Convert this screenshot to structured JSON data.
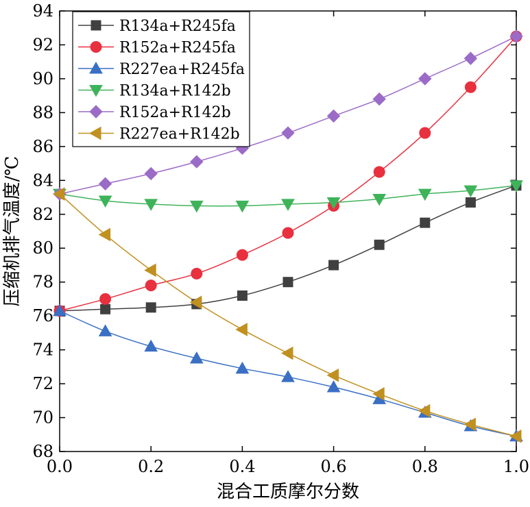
{
  "chart_data": {
    "type": "line",
    "title": "",
    "xlabel": "混合工质摩尔分数",
    "ylabel": "压缩机排气温度/℃",
    "xlim": [
      0,
      1
    ],
    "ylim": [
      68,
      94
    ],
    "xticks": [
      "0.0",
      "0.2",
      "0.4",
      "0.6",
      "0.8",
      "1.0"
    ],
    "yticks": [
      "68",
      "70",
      "72",
      "74",
      "76",
      "78",
      "80",
      "82",
      "84",
      "86",
      "88",
      "90",
      "92",
      "94"
    ],
    "grid": false,
    "legend_position": "top-left",
    "x": [
      0.0,
      0.1,
      0.2,
      0.3,
      0.4,
      0.5,
      0.6,
      0.7,
      0.8,
      0.9,
      1.0
    ],
    "series": [
      {
        "name": "R134a+R245fa",
        "color": "#404040",
        "marker": "square",
        "values": [
          76.3,
          76.4,
          76.5,
          76.7,
          77.2,
          78.0,
          79.0,
          80.2,
          81.5,
          82.7,
          83.7
        ]
      },
      {
        "name": "R152a+R245fa",
        "color": "#e8303f",
        "marker": "circle",
        "values": [
          76.3,
          77.0,
          77.8,
          78.5,
          79.6,
          80.9,
          82.5,
          84.5,
          86.8,
          89.5,
          92.5
        ]
      },
      {
        "name": "R227ea+R245fa",
        "color": "#3a6fc4",
        "marker": "triangle-up",
        "values": [
          76.3,
          75.1,
          74.2,
          73.5,
          72.9,
          72.4,
          71.8,
          71.1,
          70.3,
          69.5,
          68.9
        ]
      },
      {
        "name": "R134a+R142b",
        "color": "#3fb35a",
        "marker": "triangle-down",
        "values": [
          83.2,
          82.8,
          82.6,
          82.5,
          82.5,
          82.6,
          82.7,
          82.9,
          83.2,
          83.4,
          83.7
        ]
      },
      {
        "name": "R152a+R142b",
        "color": "#9b6bc8",
        "marker": "diamond",
        "values": [
          83.2,
          83.8,
          84.4,
          85.1,
          85.9,
          86.8,
          87.8,
          88.8,
          90.0,
          91.2,
          92.5
        ]
      },
      {
        "name": "R227ea+R142b",
        "color": "#c09020",
        "marker": "triangle-left",
        "values": [
          83.2,
          80.8,
          78.7,
          76.8,
          75.2,
          73.8,
          72.5,
          71.4,
          70.4,
          69.6,
          68.9
        ]
      }
    ]
  }
}
